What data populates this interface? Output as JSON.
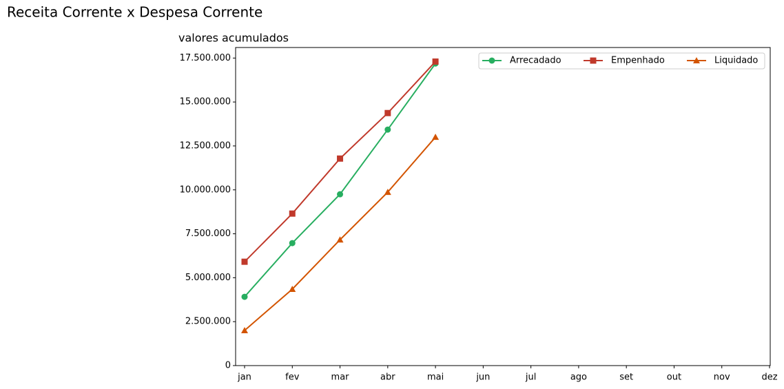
{
  "chart_data": {
    "type": "line",
    "title": "Receita Corrente x Despesa Corrente",
    "subtitle": "valores acumulados",
    "categories": [
      "jan",
      "fev",
      "mar",
      "abr",
      "mai",
      "jun",
      "jul",
      "ago",
      "set",
      "out",
      "nov",
      "dez"
    ],
    "series": [
      {
        "name": "Arrecadado",
        "color": "#27ae60",
        "marker": "circle",
        "values": [
          3915000,
          6970000,
          9750000,
          13430000,
          17190000,
          null,
          null,
          null,
          null,
          null,
          null,
          null
        ]
      },
      {
        "name": "Empenhado",
        "color": "#c0392b",
        "marker": "square",
        "values": [
          5910000,
          8650000,
          11780000,
          14370000,
          17300000,
          null,
          null,
          null,
          null,
          null,
          null,
          null
        ]
      },
      {
        "name": "Liquidado",
        "color": "#d35400",
        "marker": "triangle",
        "values": [
          2000000,
          4350000,
          7160000,
          9870000,
          13000000,
          null,
          null,
          null,
          null,
          null,
          null,
          null
        ]
      }
    ],
    "ylim": [
      0,
      18100000
    ],
    "yticks": [
      0,
      {
        "value": 2500000,
        "label": "2.500.000"
      },
      {
        "value": 5000000,
        "label": "5.000.000"
      },
      {
        "value": 7500000,
        "label": "7.500.000"
      },
      {
        "value": 10000000,
        "label": "10.000.000"
      },
      {
        "value": 12500000,
        "label": "12.500.000"
      },
      {
        "value": 15000000,
        "label": "15.000.000"
      },
      {
        "value": 17500000,
        "label": "17.500.000"
      }
    ],
    "legend": "upper right",
    "grid": false
  }
}
